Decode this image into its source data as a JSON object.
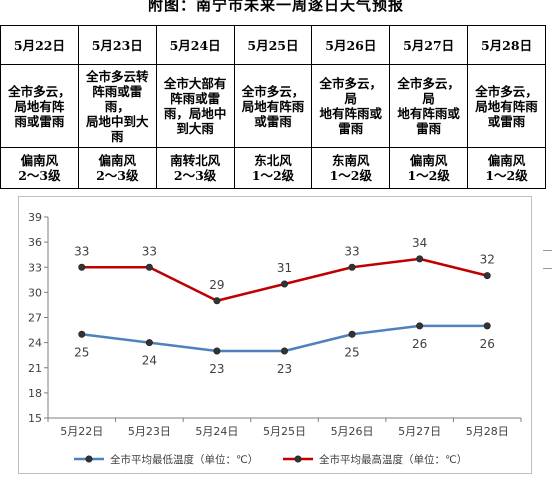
{
  "title": "附图：南宁市未来一周逐日天气预报",
  "forecast": [
    {
      "date": "5月22日",
      "weather": [
        "全市多云，",
        "局地有阵",
        "雨或雷雨"
      ],
      "wind": [
        "偏南风",
        "2～3级"
      ]
    },
    {
      "date": "5月23日",
      "weather": [
        "全市多云转",
        "阵雨或雷雨，",
        "局地中到大",
        "雨"
      ],
      "wind": [
        "偏南风",
        "2～3级"
      ]
    },
    {
      "date": "5月24日",
      "weather": [
        "全市大部有",
        "阵雨或雷",
        "雨，局地中",
        "到大雨"
      ],
      "wind": [
        "南转北风",
        "2～3级"
      ]
    },
    {
      "date": "5月25日",
      "weather": [
        "全市多云，",
        "局地有阵雨",
        "或雷雨"
      ],
      "wind": [
        "东北风",
        "1～2级"
      ]
    },
    {
      "date": "5月26日",
      "weather": [
        "全市多云，局",
        "地有阵雨或",
        "雷雨"
      ],
      "wind": [
        "东南风",
        "1～2级"
      ]
    },
    {
      "date": "5月27日",
      "weather": [
        "全市多云，局",
        "地有阵雨或",
        "雷雨"
      ],
      "wind": [
        "偏南风",
        "1～2级"
      ]
    },
    {
      "date": "5月28日",
      "weather": [
        "全市多云，",
        "局地有阵雨",
        "或雷雨"
      ],
      "wind": [
        "偏南风",
        "1～2级"
      ]
    }
  ],
  "chart_data": {
    "type": "line",
    "categories": [
      "5月22日",
      "5月23日",
      "5月24日",
      "5月25日",
      "5月26日",
      "5月27日",
      "5月28日"
    ],
    "series": [
      {
        "name": "全市平均最低温度（单位：℃）",
        "values": [
          25,
          24,
          23,
          23,
          25,
          26,
          26
        ],
        "color": "#4f81bd"
      },
      {
        "name": "全市平均最高温度（单位：℃）",
        "values": [
          33,
          33,
          29,
          31,
          33,
          34,
          32
        ],
        "color": "#c00000"
      }
    ],
    "ylim": [
      15,
      39
    ],
    "yticks": [
      15,
      18,
      21,
      24,
      27,
      30,
      33,
      36,
      39
    ],
    "grid": false,
    "legend": "bottom"
  }
}
